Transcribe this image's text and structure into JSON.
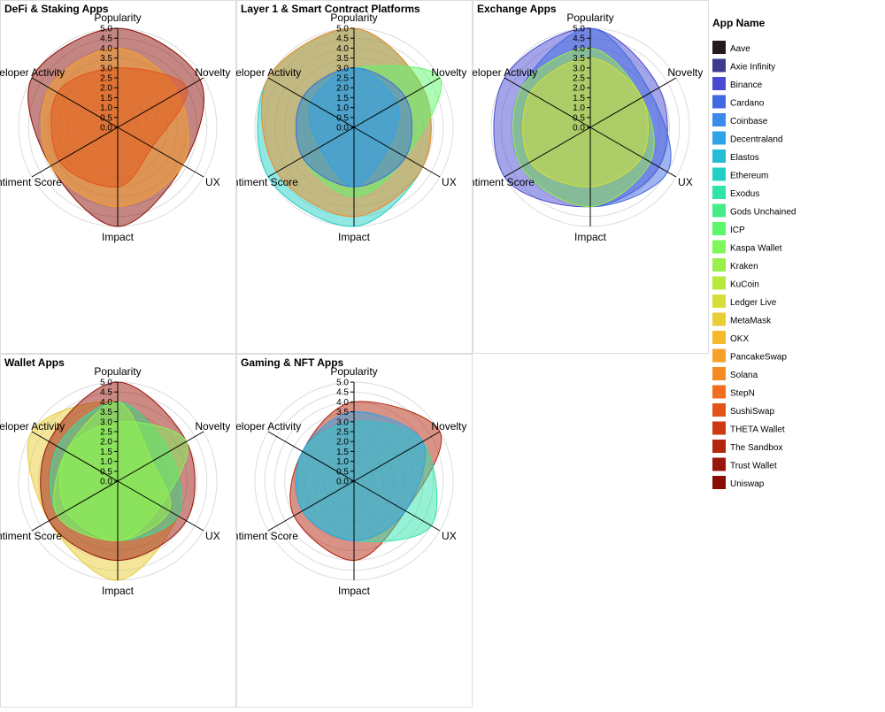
{
  "chart_data": {
    "type": "radar",
    "axes": [
      "Popularity",
      "Novelty",
      "UX",
      "Impact",
      "Sentiment Score",
      "Developer Activity"
    ],
    "ticks": [
      "0.0",
      "0.5",
      "1.0",
      "1.5",
      "2.0",
      "2.5",
      "3.0",
      "3.5",
      "4.0",
      "4.5",
      "5.0"
    ],
    "rmax": 5,
    "legend": {
      "title": "App Name",
      "placement": "right",
      "items": [
        {
          "name": "Aave",
          "color": "#231a1c"
        },
        {
          "name": "Axie Infinity",
          "color": "#3d3a8f"
        },
        {
          "name": "Binance",
          "color": "#4a4bd1"
        },
        {
          "name": "Cardano",
          "color": "#4169e1"
        },
        {
          "name": "Coinbase",
          "color": "#3a8aec"
        },
        {
          "name": "Decentraland",
          "color": "#2fa3e8"
        },
        {
          "name": "Elastos",
          "color": "#25bcd6"
        },
        {
          "name": "Ethereum",
          "color": "#23cfc4"
        },
        {
          "name": "Exodus",
          "color": "#2fe3a9"
        },
        {
          "name": "Gods Unchained",
          "color": "#45ec88"
        },
        {
          "name": "ICP",
          "color": "#5ef76c"
        },
        {
          "name": "Kaspa Wallet",
          "color": "#7ef75a"
        },
        {
          "name": "Kraken",
          "color": "#99f04b"
        },
        {
          "name": "KuCoin",
          "color": "#b7ea3c"
        },
        {
          "name": "Ledger Live",
          "color": "#d4e038"
        },
        {
          "name": "MetaMask",
          "color": "#e8cd35"
        },
        {
          "name": "OKX",
          "color": "#f6b92a"
        },
        {
          "name": "PancakeSwap",
          "color": "#f7a128"
        },
        {
          "name": "Solana",
          "color": "#f48a22"
        },
        {
          "name": "StepN",
          "color": "#f06e1d"
        },
        {
          "name": "SushiSwap",
          "color": "#e25418"
        },
        {
          "name": "THETA Wallet",
          "color": "#cc3a12"
        },
        {
          "name": "The Sandbox",
          "color": "#b2260e"
        },
        {
          "name": "Trust Wallet",
          "color": "#991509"
        },
        {
          "name": "Uniswap",
          "color": "#8a0d05"
        }
      ]
    },
    "panels": [
      {
        "title": "DeFi & Staking Apps",
        "series": [
          {
            "name": "Uniswap",
            "color": "#8a0d05",
            "values": [
              5.0,
              4.8,
              3.8,
              5.0,
              3.9,
              5.0
            ]
          },
          {
            "name": "PancakeSwap",
            "color": "#f7a128",
            "values": [
              4.0,
              3.5,
              3.8,
              4.0,
              3.9,
              4.0
            ]
          },
          {
            "name": "SushiSwap",
            "color": "#e25418",
            "values": [
              3.0,
              4.0,
              2.0,
              3.0,
              3.4,
              3.5
            ]
          }
        ]
      },
      {
        "title": "Layer 1 & Smart Contract Platforms",
        "series": [
          {
            "name": "Ethereum",
            "color": "#23cfc4",
            "values": [
              5.0,
              4.0,
              4.0,
              5.0,
              5.0,
              5.0
            ]
          },
          {
            "name": "Solana",
            "color": "#f48a22",
            "values": [
              5.0,
              4.0,
              4.0,
              4.5,
              4.5,
              5.0
            ]
          },
          {
            "name": "ICP",
            "color": "#5ef76c",
            "values": [
              3.0,
              5.0,
              3.0,
              3.5,
              3.0,
              3.0
            ]
          },
          {
            "name": "Cardano",
            "color": "#4169e1",
            "values": [
              3.0,
              3.0,
              3.0,
              3.0,
              3.0,
              3.0
            ]
          },
          {
            "name": "Decentraland",
            "color": "#2fa3e8",
            "values": [
              3.0,
              2.5,
              2.0,
              3.0,
              2.0,
              2.5
            ]
          }
        ]
      },
      {
        "title": "Exchange Apps",
        "series": [
          {
            "name": "Binance",
            "color": "#4a4bd1",
            "values": [
              5.0,
              4.0,
              4.0,
              4.0,
              5.0,
              5.0
            ]
          },
          {
            "name": "Cardano",
            "color": "#4169e1",
            "values": [
              5.0,
              3.5,
              4.5,
              4.0,
              4.0,
              4.0
            ]
          },
          {
            "name": "Kraken",
            "color": "#99f04b",
            "values": [
              4.0,
              3.0,
              3.5,
              4.0,
              4.0,
              4.0
            ]
          },
          {
            "name": "Ledger Live",
            "color": "#d4e038",
            "values": [
              3.5,
              3.0,
              3.0,
              3.0,
              3.5,
              3.5
            ]
          }
        ]
      },
      {
        "title": "Wallet Apps",
        "series": [
          {
            "name": "MetaMask",
            "color": "#e8cd35",
            "values": [
              4.0,
              3.0,
              3.5,
              5.0,
              4.0,
              5.0
            ]
          },
          {
            "name": "Trust Wallet",
            "color": "#991509",
            "values": [
              5.0,
              4.0,
              4.0,
              4.0,
              4.0,
              4.0
            ]
          },
          {
            "name": "Exodus",
            "color": "#2fe3a9",
            "values": [
              4.0,
              3.0,
              3.5,
              3.0,
              3.5,
              3.5
            ]
          },
          {
            "name": "Kaspa Wallet",
            "color": "#7ef75a",
            "values": [
              3.0,
              4.0,
              2.5,
              3.0,
              3.0,
              3.0
            ]
          },
          {
            "name": "Kraken",
            "color": "#99f04b",
            "values": [
              4.0,
              2.0,
              3.0,
              3.0,
              3.5,
              3.0
            ]
          }
        ]
      },
      {
        "title": "Gaming & NFT Apps",
        "series": [
          {
            "name": "The Sandbox",
            "color": "#b2260e",
            "values": [
              4.0,
              5.0,
              3.0,
              4.0,
              3.5,
              3.0
            ]
          },
          {
            "name": "Exodus",
            "color": "#2fe3a9",
            "values": [
              3.0,
              4.0,
              4.5,
              3.0,
              3.0,
              3.0
            ]
          },
          {
            "name": "Decentraland",
            "color": "#2fa3e8",
            "values": [
              3.5,
              4.0,
              3.0,
              3.0,
              3.0,
              3.0
            ]
          }
        ]
      }
    ]
  }
}
